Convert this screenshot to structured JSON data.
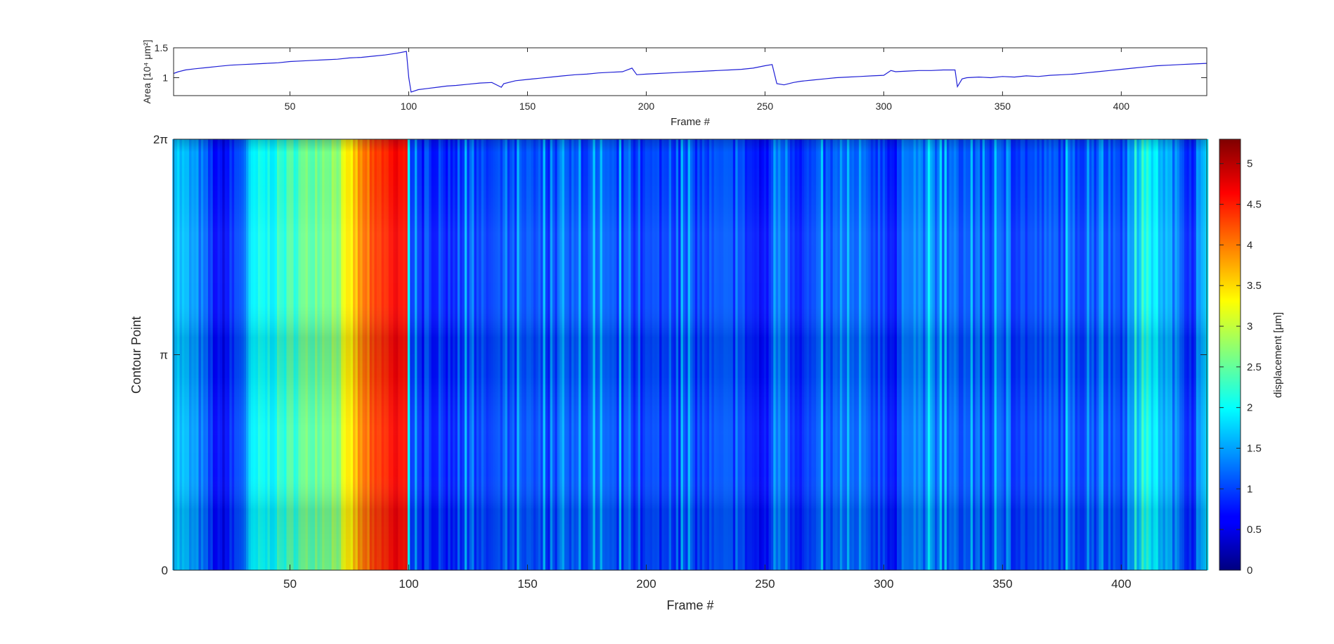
{
  "chart_data": [
    {
      "type": "line",
      "xlabel": "Frame #",
      "ylabel": "Area [10⁴ μm²]",
      "xlim": [
        1,
        436
      ],
      "ylim": [
        0.7,
        1.5
      ],
      "xticks": [
        50,
        100,
        150,
        200,
        250,
        300,
        350,
        400
      ],
      "yticks": [
        1,
        1.5
      ],
      "ytick_labels": [
        "1",
        "1.5"
      ],
      "line_color": "#1f1fd6",
      "grid": false,
      "series": [
        {
          "x": [
            1,
            3,
            6,
            10,
            15,
            20,
            25,
            30,
            35,
            40,
            45,
            50,
            55,
            60,
            65,
            70,
            75,
            80,
            85,
            90,
            95,
            99,
            100,
            101,
            104,
            108,
            112,
            116,
            120,
            125,
            130,
            135,
            139,
            140,
            145,
            150,
            155,
            160,
            165,
            170,
            175,
            180,
            185,
            190,
            194,
            196,
            200,
            205,
            210,
            215,
            220,
            225,
            230,
            235,
            240,
            245,
            250,
            253,
            255,
            258,
            262,
            265,
            270,
            275,
            280,
            285,
            290,
            295,
            300,
            303,
            305,
            310,
            315,
            320,
            325,
            330,
            331,
            333,
            335,
            340,
            345,
            350,
            355,
            360,
            365,
            370,
            375,
            380,
            385,
            390,
            395,
            400,
            405,
            410,
            415,
            420,
            425,
            430,
            436
          ],
          "y": [
            1.07,
            1.1,
            1.13,
            1.15,
            1.17,
            1.19,
            1.21,
            1.22,
            1.23,
            1.24,
            1.25,
            1.27,
            1.28,
            1.29,
            1.3,
            1.31,
            1.33,
            1.34,
            1.36,
            1.38,
            1.41,
            1.44,
            1.0,
            0.76,
            0.8,
            0.82,
            0.84,
            0.86,
            0.87,
            0.89,
            0.91,
            0.92,
            0.84,
            0.9,
            0.95,
            0.97,
            0.99,
            1.01,
            1.03,
            1.05,
            1.06,
            1.08,
            1.09,
            1.1,
            1.16,
            1.05,
            1.06,
            1.07,
            1.08,
            1.09,
            1.1,
            1.11,
            1.12,
            1.13,
            1.14,
            1.16,
            1.2,
            1.22,
            0.9,
            0.88,
            0.92,
            0.94,
            0.96,
            0.98,
            1.0,
            1.01,
            1.02,
            1.03,
            1.04,
            1.12,
            1.1,
            1.11,
            1.12,
            1.12,
            1.13,
            1.13,
            0.85,
            0.98,
            1.0,
            1.01,
            1.0,
            1.02,
            1.01,
            1.03,
            1.02,
            1.04,
            1.05,
            1.06,
            1.08,
            1.1,
            1.12,
            1.14,
            1.16,
            1.18,
            1.2,
            1.21,
            1.22,
            1.23,
            1.24
          ]
        }
      ]
    },
    {
      "type": "heatmap",
      "xlabel": "Frame #",
      "ylabel": "Contour Point",
      "xlim": [
        1,
        436
      ],
      "xticks": [
        50,
        100,
        150,
        200,
        250,
        300,
        350,
        400
      ],
      "y_ticks": [
        "0",
        "π",
        "2π"
      ],
      "colorbar": {
        "label": "displacement [μm]",
        "colormap": "jet",
        "range": [
          0,
          5.3
        ],
        "ticks": [
          "0",
          "0.5",
          "1",
          "1.5",
          "2",
          "2.5",
          "3",
          "3.5",
          "4",
          "4.5",
          "5"
        ]
      },
      "frame_mean_displacement": {
        "frames": [
          1,
          5,
          12,
          20,
          25,
          30,
          35,
          40,
          50,
          60,
          70,
          75,
          80,
          90,
          97,
          99,
          100,
          101,
          110,
          130,
          150,
          170,
          190,
          200,
          220,
          240,
          245,
          250,
          255,
          265,
          280,
          300,
          305,
          310,
          320,
          340,
          360,
          380,
          400,
          405,
          410,
          420,
          430,
          436
        ],
        "values": [
          1.8,
          1.6,
          1.3,
          0.6,
          0.8,
          1.2,
          1.9,
          2.0,
          2.3,
          2.6,
          2.8,
          3.3,
          3.9,
          4.4,
          4.7,
          4.5,
          2.2,
          0.8,
          0.85,
          0.95,
          1.0,
          1.05,
          1.0,
          0.95,
          1.0,
          1.0,
          0.8,
          0.6,
          1.3,
          0.9,
          1.1,
          1.05,
          0.7,
          1.5,
          1.2,
          1.1,
          1.0,
          1.1,
          1.1,
          1.4,
          2.1,
          1.5,
          0.9,
          1.7
        ]
      }
    }
  ]
}
